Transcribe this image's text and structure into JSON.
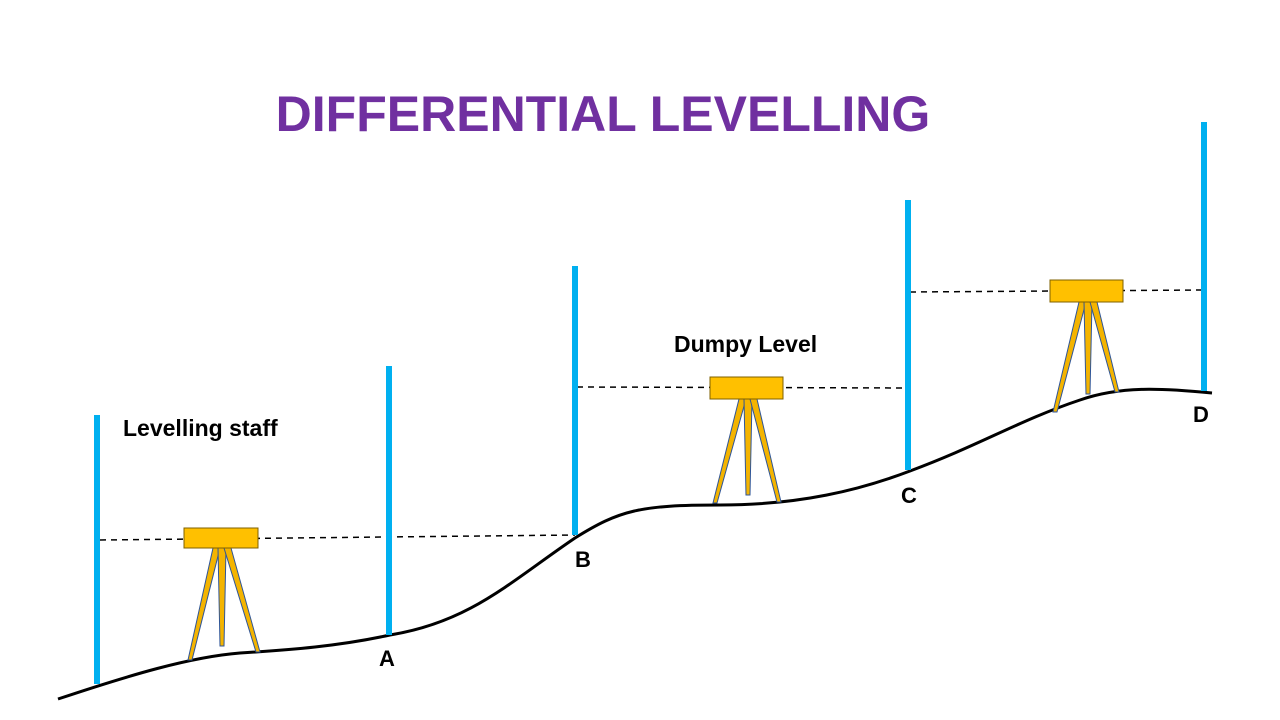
{
  "title": "DIFFERENTIAL LEVELLING",
  "labels": {
    "staff": "Levelling staff",
    "instrument": "Dumpy Level"
  },
  "points": [
    "A",
    "B",
    "C",
    "D"
  ],
  "colors": {
    "title": "#7030a0",
    "staff": "#00b0f0",
    "instrument_body": "#ffc000",
    "instrument_outline": "#7f6000",
    "tripod_leg": "#f4b400",
    "tripod_outline": "#2f5597",
    "ground": "#000000",
    "sight_line": "#000000"
  },
  "icons": {
    "staff": "levelling-staff-icon",
    "instrument": "dumpy-level-icon",
    "tripod": "tripod-icon"
  }
}
